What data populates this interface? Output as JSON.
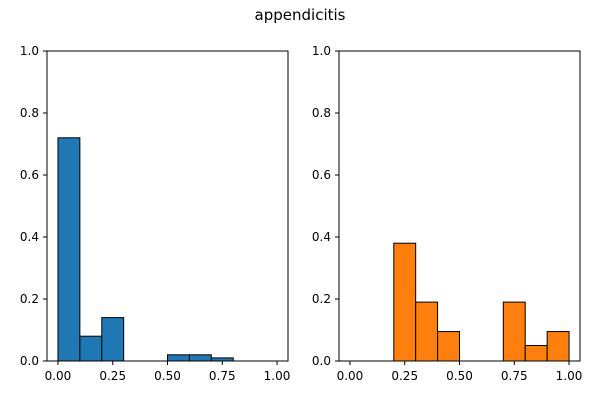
{
  "figure": {
    "title": "appendicitis"
  },
  "chart_data": [
    {
      "type": "bar",
      "title": "",
      "xlabel": "",
      "ylabel": "",
      "xlim": [
        -0.05,
        1.05
      ],
      "ylim": [
        0,
        1.0
      ],
      "xticks": [
        0.0,
        0.25,
        0.5,
        0.75,
        1.0
      ],
      "xtick_labels": [
        "0.00",
        "0.25",
        "0.50",
        "0.75",
        "1.00"
      ],
      "yticks": [
        0.0,
        0.2,
        0.4,
        0.6,
        0.8,
        1.0
      ],
      "ytick_labels": [
        "0.0",
        "0.2",
        "0.4",
        "0.6",
        "0.8",
        "1.0"
      ],
      "bin_edges": [
        0.0,
        0.1,
        0.2,
        0.3,
        0.4,
        0.5,
        0.6,
        0.7,
        0.8,
        0.9,
        1.0
      ],
      "values": [
        0.72,
        0.08,
        0.14,
        0.0,
        0.0,
        0.02,
        0.02,
        0.01,
        0.0,
        0.0
      ],
      "color": "#1f77b4",
      "edgecolor": "#000000",
      "grid": false
    },
    {
      "type": "bar",
      "title": "",
      "xlabel": "",
      "ylabel": "",
      "xlim": [
        -0.05,
        1.05
      ],
      "ylim": [
        0,
        1.0
      ],
      "xticks": [
        0.0,
        0.25,
        0.5,
        0.75,
        1.0
      ],
      "xtick_labels": [
        "0.00",
        "0.25",
        "0.50",
        "0.75",
        "1.00"
      ],
      "yticks": [
        0.0,
        0.2,
        0.4,
        0.6,
        0.8,
        1.0
      ],
      "ytick_labels": [
        "0.0",
        "0.2",
        "0.4",
        "0.6",
        "0.8",
        "1.0"
      ],
      "bin_edges": [
        0.0,
        0.1,
        0.2,
        0.3,
        0.4,
        0.5,
        0.6,
        0.7,
        0.8,
        0.9,
        1.0
      ],
      "values": [
        0.0,
        0.0,
        0.38,
        0.19,
        0.095,
        0.0,
        0.0,
        0.19,
        0.05,
        0.095
      ],
      "color": "#ff7f0e",
      "edgecolor": "#000000",
      "grid": false
    }
  ]
}
